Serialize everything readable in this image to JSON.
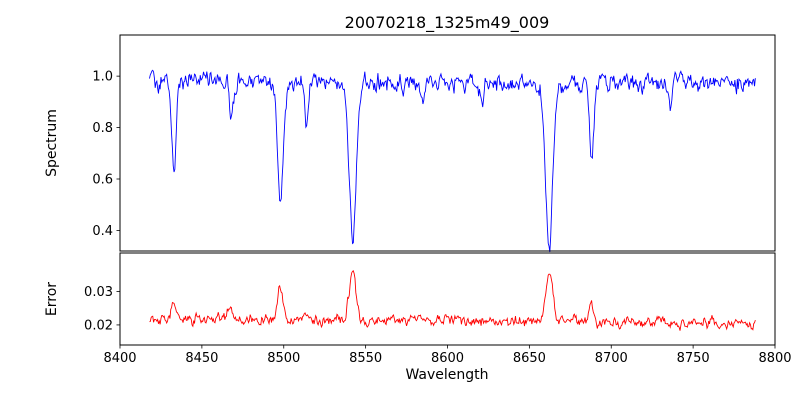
{
  "chart_data": {
    "type": "line",
    "title": "20070218_1325m49_009",
    "xlabel": "Wavelength",
    "xlim": [
      8400,
      8800
    ],
    "x_range": [
      8418,
      8788
    ],
    "xticks": [
      8400,
      8450,
      8500,
      8550,
      8600,
      8650,
      8700,
      8750,
      8800
    ],
    "xticklabels": [
      "8400",
      "8450",
      "8500",
      "8550",
      "8600",
      "8650",
      "8700",
      "8750",
      "8800"
    ],
    "grid": false,
    "legend": null,
    "panels": [
      {
        "name": "spectrum",
        "ylabel": "Spectrum",
        "color": "#0000ff",
        "ylim": [
          0.32,
          1.16
        ],
        "yticks": [
          0.4,
          0.6,
          0.8,
          1.0
        ],
        "yticklabels": [
          "0.4",
          "0.6",
          "0.8",
          "1.0"
        ],
        "baseline_start": 0.975,
        "baseline_end": 0.975,
        "noise_amplitude": 0.022,
        "clip_max": 1.115,
        "seed": 20070218,
        "sample_step": 0.5,
        "features": [
          {
            "center": 8433.0,
            "depth": 0.365,
            "width": 1.3
          },
          {
            "center": 8468.0,
            "depth": 0.12,
            "width": 1.1
          },
          {
            "center": 8498.0,
            "depth": 0.445,
            "width": 1.8
          },
          {
            "center": 8514.0,
            "depth": 0.17,
            "width": 1.0
          },
          {
            "center": 8542.1,
            "depth": 0.6,
            "width": 2.2
          },
          {
            "center": 8585.0,
            "depth": 0.1,
            "width": 1.0
          },
          {
            "center": 8621.0,
            "depth": 0.1,
            "width": 1.0
          },
          {
            "center": 8662.1,
            "depth": 0.645,
            "width": 2.2
          },
          {
            "center": 8688.0,
            "depth": 0.325,
            "width": 1.3
          },
          {
            "center": 8736.0,
            "depth": 0.09,
            "width": 1.0
          }
        ]
      },
      {
        "name": "error",
        "ylabel": "Error",
        "color": "#ff0000",
        "ylim": [
          0.014,
          0.0415
        ],
        "yticks": [
          0.02,
          0.03
        ],
        "yticklabels": [
          "0.02",
          "0.03"
        ],
        "baseline_start": 0.0218,
        "baseline_end": 0.0207,
        "noise_amplitude": 0.001,
        "clip_max": 0.04,
        "seed": 1325,
        "sample_step": 0.5,
        "features": [
          {
            "center": 8433.0,
            "depth": -0.005,
            "width": 1.5
          },
          {
            "center": 8467.0,
            "depth": -0.003,
            "width": 1.5
          },
          {
            "center": 8498.0,
            "depth": -0.0095,
            "width": 1.6
          },
          {
            "center": 8542.1,
            "depth": -0.0152,
            "width": 2.0
          },
          {
            "center": 8662.1,
            "depth": -0.0148,
            "width": 2.0
          },
          {
            "center": 8688.0,
            "depth": -0.0045,
            "width": 1.5
          }
        ]
      }
    ]
  }
}
